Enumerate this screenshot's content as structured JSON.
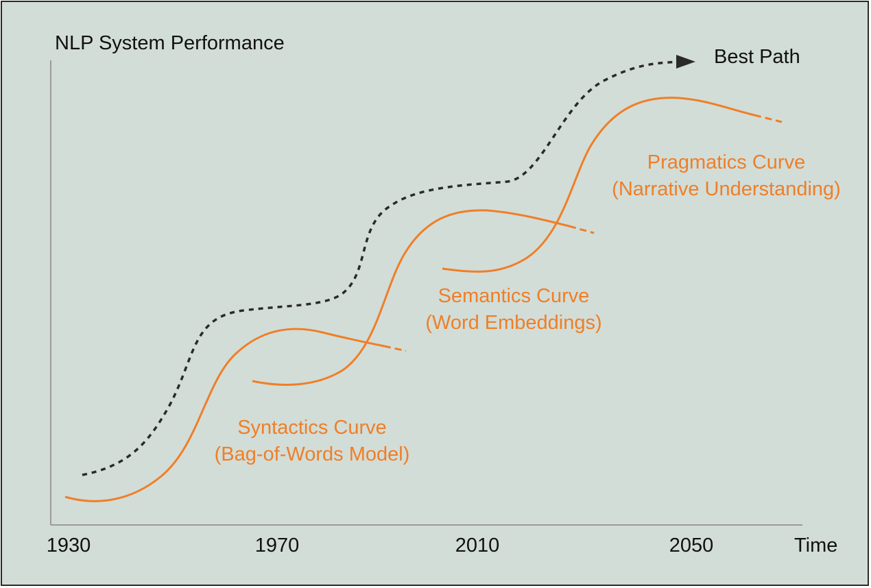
{
  "title": "NLP System Performance",
  "x_axis_label": "Time",
  "x_ticks": [
    "1930",
    "1970",
    "2010",
    "2050"
  ],
  "best_path_label": "Best Path",
  "curves": [
    {
      "name": "Syntactics Curve",
      "subtitle": "(Bag-of-Words Model)"
    },
    {
      "name": "Semantics Curve",
      "subtitle": "(Word Embeddings)"
    },
    {
      "name": "Pragmatics Curve",
      "subtitle": "(Narrative Understanding)"
    }
  ],
  "colors": {
    "background": "#d2ddd8",
    "border": "#2a2a2a",
    "axis": "#9a9a9a",
    "curve": "#f07e26",
    "best_path": "#2a2a2a",
    "text": "#111111"
  }
}
